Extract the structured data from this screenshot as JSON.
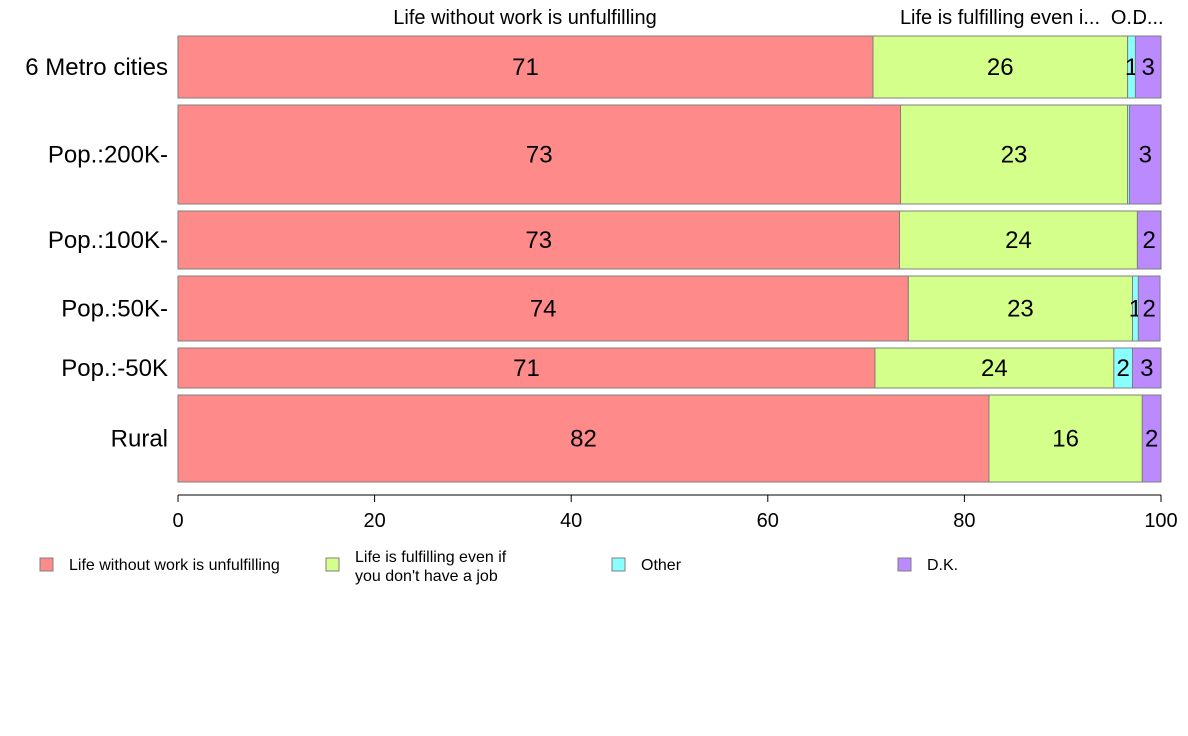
{
  "chart_data": {
    "type": "bar",
    "orientation": "horizontal",
    "stacked": true,
    "categories": [
      "6 Metro cities",
      "Pop.:200K-",
      "Pop.:100K-",
      "Pop.:50K-",
      "Pop.:-50K",
      "Rural"
    ],
    "top_labels": [
      "Life without work is unfulfilling",
      "Life is fulfilling even i...",
      "O...",
      "D..."
    ],
    "series": [
      {
        "name": "Life without work is unfulfilling",
        "legend_lines": [
          "Life without work is unfulfilling"
        ],
        "color": "#ff8a8a",
        "values": [
          70.7,
          73.5,
          73.4,
          74.3,
          70.9,
          82.5
        ],
        "labels": [
          "71",
          "73",
          "73",
          "74",
          "71",
          "82"
        ]
      },
      {
        "name": "Life is fulfilling even if you don't have a job",
        "legend_lines": [
          "Life is fulfilling even if",
          "you don't have a job"
        ],
        "color": "#d4ff8a",
        "values": [
          25.9,
          23.1,
          24.2,
          22.8,
          24.3,
          15.6
        ],
        "labels": [
          "26",
          "23",
          "24",
          "23",
          "24",
          "16"
        ]
      },
      {
        "name": "Other",
        "legend_lines": [
          "Other"
        ],
        "color": "#8affff",
        "values": [
          0.8,
          0.2,
          0.0,
          0.6,
          1.9,
          0.0
        ],
        "labels": [
          "1",
          "",
          "",
          "1",
          "2",
          ""
        ]
      },
      {
        "name": "D.K.",
        "legend_lines": [
          "D.K."
        ],
        "color": "#bb8aff",
        "values": [
          2.6,
          3.2,
          2.4,
          2.2,
          2.9,
          1.9
        ],
        "labels": [
          "3",
          "3",
          "2",
          "2",
          "3",
          "2"
        ]
      }
    ],
    "xlim": [
      0,
      100
    ],
    "xticks": [
      0,
      20,
      40,
      60,
      80,
      100
    ],
    "grid": false,
    "legend_position": "bottom"
  }
}
